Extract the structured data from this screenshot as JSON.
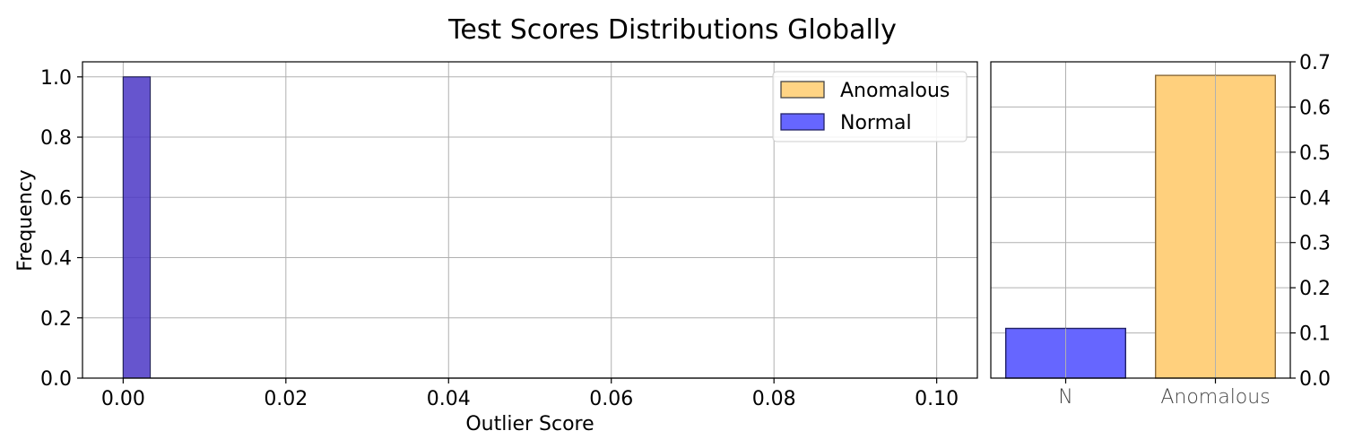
{
  "title": "Test Scores Distributions Globally",
  "chart_data": [
    {
      "type": "bar",
      "subtype": "histogram",
      "xlabel": "Outlier Score",
      "ylabel": "Frequency",
      "xlim": [
        -0.005,
        0.105
      ],
      "ylim": [
        0,
        1.05
      ],
      "xticks": [
        "0.00",
        "0.02",
        "0.04",
        "0.06",
        "0.08",
        "0.10"
      ],
      "xtick_values": [
        0,
        0.02,
        0.04,
        0.06,
        0.08,
        0.1
      ],
      "yticks": [
        "0.0",
        "0.2",
        "0.4",
        "0.6",
        "0.8",
        "1.0"
      ],
      "ytick_values": [
        0,
        0.2,
        0.4,
        0.6,
        0.8,
        1.0
      ],
      "grid": true,
      "legend_position": "top-right",
      "bin_width": 0.00333,
      "series": [
        {
          "name": "Anomalous",
          "color": "#ffb732",
          "opacity": 0.6,
          "bins": [
            {
              "x0": 0.0,
              "x1": 0.00333,
              "value": 1.0
            }
          ]
        },
        {
          "name": "Normal",
          "color": "#0000ff",
          "opacity": 0.6,
          "bins": [
            {
              "x0": 0.0,
              "x1": 0.00333,
              "value": 1.0
            }
          ]
        }
      ]
    },
    {
      "type": "bar",
      "categories": [
        "N",
        "Anomalous"
      ],
      "values": [
        0.11,
        0.67
      ],
      "colors": [
        "#6666ff",
        "#ffd07d"
      ],
      "ylim": [
        0,
        0.7
      ],
      "yticks": [
        "0.0",
        "0.1",
        "0.2",
        "0.3",
        "0.4",
        "0.5",
        "0.6",
        "0.7"
      ],
      "ytick_values": [
        0,
        0.1,
        0.2,
        0.3,
        0.4,
        0.5,
        0.6,
        0.7
      ],
      "yaxis_side": "right",
      "grid": true
    }
  ]
}
